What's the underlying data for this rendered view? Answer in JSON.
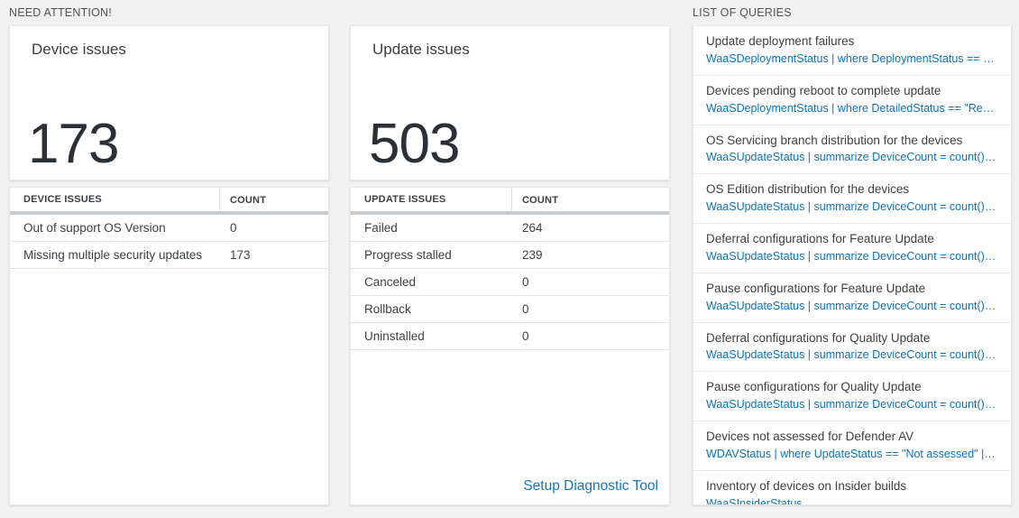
{
  "colors": {
    "page_background": "#f1f1f1",
    "tile_background": "#ffffff",
    "accent_blue": "#0d72bd",
    "big_number_color": "#2b3036",
    "thick_bar_gray": "#c8cbce"
  },
  "need_attention": {
    "header": "NEED ATTENTION!",
    "device_tile": {
      "title": "Device issues",
      "count": "173"
    },
    "device_table": {
      "col1": "DEVICE ISSUES",
      "col2": "COUNT",
      "rows": [
        {
          "label": "Out of support OS Version",
          "value": "0"
        },
        {
          "label": "Missing multiple security updates",
          "value": "173"
        }
      ]
    },
    "update_tile": {
      "title": "Update issues",
      "count": "503"
    },
    "update_table": {
      "col1": "UPDATE ISSUES",
      "col2": "COUNT",
      "rows": [
        {
          "label": "Failed",
          "value": "264"
        },
        {
          "label": "Progress stalled",
          "value": "239"
        },
        {
          "label": "Canceled",
          "value": "0"
        },
        {
          "label": "Rollback",
          "value": "0"
        },
        {
          "label": "Uninstalled",
          "value": "0"
        }
      ],
      "footer_link": "Setup Diagnostic Tool"
    }
  },
  "queries": {
    "header": "LIST OF QUERIES",
    "items": [
      {
        "title": "Update deployment failures",
        "query": "WaaSDeploymentStatus | where DeploymentStatus == \"Failed\" |..."
      },
      {
        "title": "Devices pending reboot to complete update",
        "query": "WaaSDeploymentStatus | where DetailedStatus == \"Reboot pend..."
      },
      {
        "title": "OS Servicing branch distribution for the devices",
        "query": "WaaSUpdateStatus | summarize DeviceCount = count() by OSSer..."
      },
      {
        "title": "OS Edition distribution for the devices",
        "query": "WaaSUpdateStatus | summarize DeviceCount = count() by OSEdit..."
      },
      {
        "title": "Deferral configurations for Feature Update",
        "query": "WaaSUpdateStatus | summarize DeviceCount = count() by Featur..."
      },
      {
        "title": "Pause configurations for Feature Update",
        "query": "WaaSUpdateStatus | summarize DeviceCount = count() by Featur..."
      },
      {
        "title": "Deferral configurations for Quality Update",
        "query": "WaaSUpdateStatus | summarize DeviceCount = count() by Qualit..."
      },
      {
        "title": "Pause configurations for Quality Update",
        "query": "WaaSUpdateStatus | summarize DeviceCount = count() by Qualit..."
      },
      {
        "title": "Devices not assessed for Defender AV",
        "query": "WDAVStatus | where UpdateStatus == \"Not assessed\" | render ta..."
      },
      {
        "title": "Inventory of devices on Insider builds",
        "query": "WaaSInsiderStatus"
      }
    ]
  }
}
